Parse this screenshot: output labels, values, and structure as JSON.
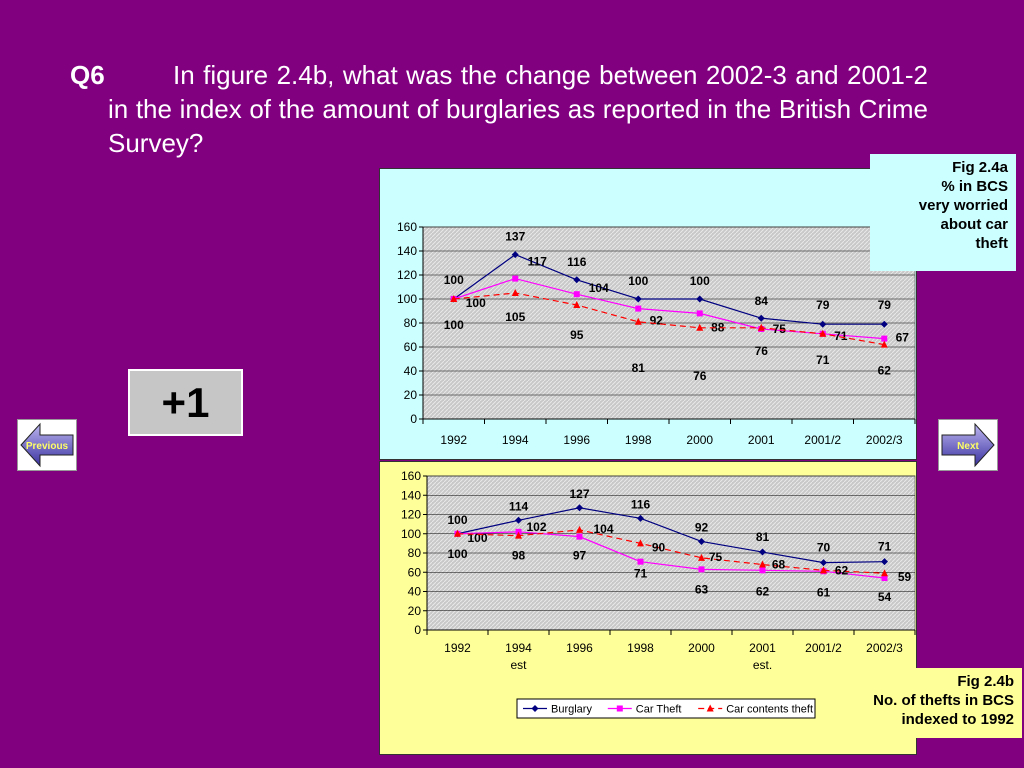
{
  "question": {
    "number": "Q6",
    "text": "In figure 2.4b, what was the change between 2002-3 and 2001-2 in the index of the amount of burglaries as reported in the British Crime Survey?"
  },
  "score": "+1",
  "nav": {
    "previous_label": "Previous",
    "next_label": "Next"
  },
  "fig_a_label": [
    "Fig 2.4a",
    "% in BCS",
    "very worried",
    "about car",
    "theft"
  ],
  "fig_b_label": [
    "Fig 2.4b",
    "No. of thefts in BCS",
    "indexed to 1992"
  ],
  "colors": {
    "background": "#800080",
    "burglary": "#000080",
    "car_theft": "#ff00ff",
    "car_contents": "#ff0000"
  },
  "chart_data": [
    {
      "type": "line",
      "categories": [
        "1992",
        "1994",
        "1996",
        "1998",
        "2000",
        "2001",
        "2001/2",
        "2002/3"
      ],
      "ylim": [
        0,
        160
      ],
      "yticks": [
        0,
        20,
        40,
        60,
        80,
        100,
        120,
        140,
        160
      ],
      "grid": true,
      "series": [
        {
          "values": [
            100,
            137,
            116,
            100,
            100,
            84,
            79,
            79
          ]
        },
        {
          "values": [
            100,
            117,
            104,
            92,
            88,
            75,
            71,
            67
          ]
        },
        {
          "values": [
            100,
            105,
            95,
            81,
            76,
            76,
            71,
            62
          ]
        }
      ]
    },
    {
      "type": "line",
      "categories": [
        "1992",
        "1994 est",
        "1996",
        "1998",
        "2000",
        "2001 est.",
        "2001/2",
        "2002/3"
      ],
      "ylim": [
        0,
        160
      ],
      "yticks": [
        0,
        20,
        40,
        60,
        80,
        100,
        120,
        140,
        160
      ],
      "grid": true,
      "legend": "bottom",
      "series": [
        {
          "name": "Burglary",
          "values": [
            100,
            114,
            127,
            116,
            92,
            81,
            70,
            71
          ]
        },
        {
          "name": "Car Theft",
          "values": [
            100,
            102,
            97,
            71,
            63,
            62,
            61,
            54
          ]
        },
        {
          "name": "Car contents theft",
          "values": [
            100,
            98,
            104,
            90,
            75,
            68,
            62,
            59
          ]
        }
      ]
    }
  ]
}
